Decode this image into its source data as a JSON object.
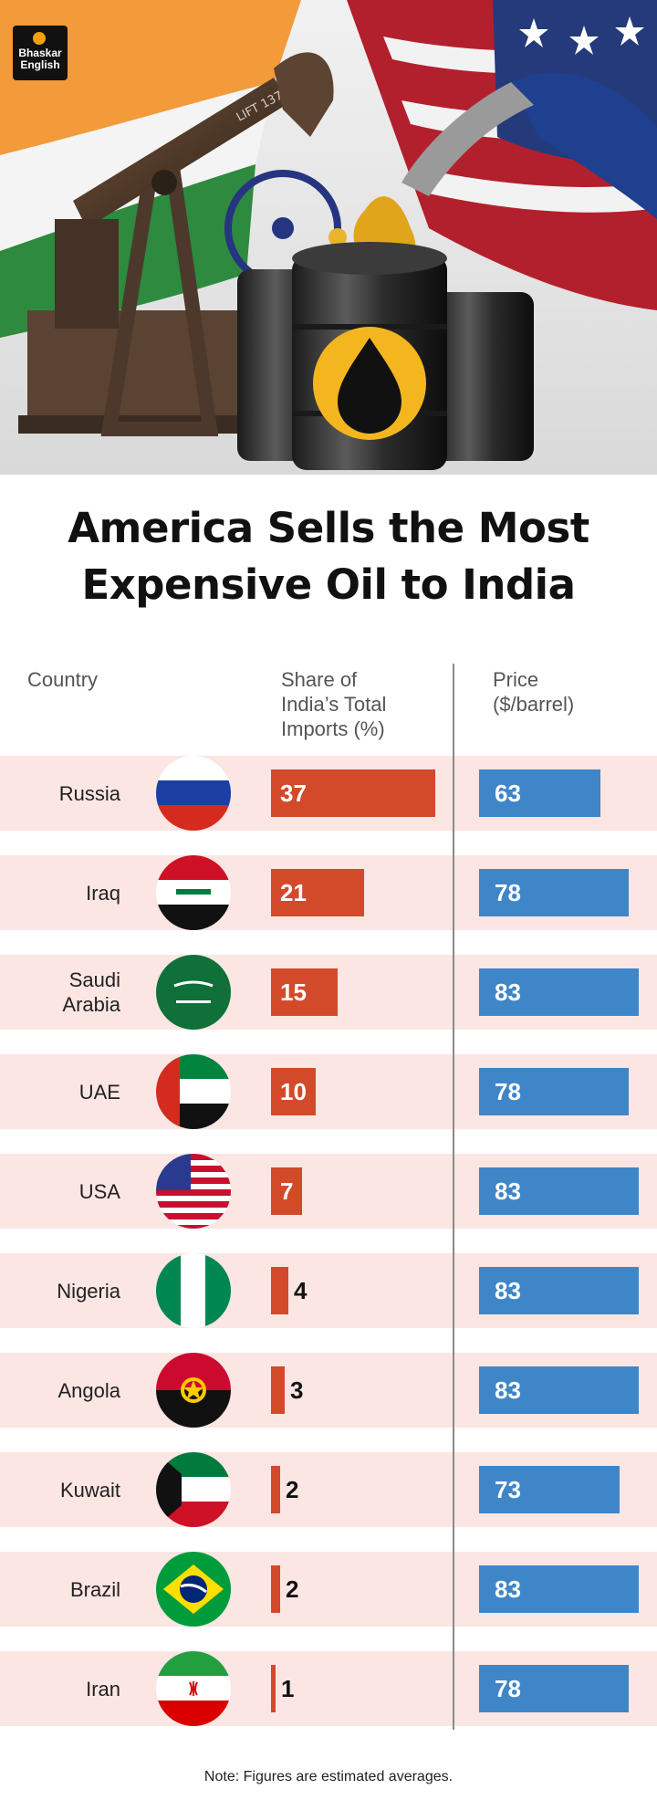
{
  "brand": {
    "line1": "Bhaskar",
    "line2": "English"
  },
  "title": {
    "line1": "America Sells the Most",
    "line2": "Expensive Oil to India"
  },
  "headers": {
    "country": "Country",
    "share": [
      "Share of",
      "India’s Total",
      "Imports (%)"
    ],
    "price": [
      "Price",
      "($/barrel)"
    ]
  },
  "note": "Note: Figures are estimated averages.",
  "colors": {
    "share_bar": "#d24a2a",
    "price_bar": "#3f86c8",
    "row_band": "#fbe6e3"
  },
  "hero_sign": "LIFT 137",
  "chart_data": {
    "type": "bar",
    "categories": [
      "Russia",
      "Iraq",
      "Saudi Arabia",
      "UAE",
      "USA",
      "Nigeria",
      "Angola",
      "Kuwait",
      "Brazil",
      "Iran"
    ],
    "country_labels": [
      [
        "Russia"
      ],
      [
        "Iraq"
      ],
      [
        "Saudi",
        "Arabia"
      ],
      [
        "UAE"
      ],
      [
        "USA"
      ],
      [
        "Nigeria"
      ],
      [
        "Angola"
      ],
      [
        "Kuwait"
      ],
      [
        "Brazil"
      ],
      [
        "Iran"
      ]
    ],
    "flags": [
      "russia-flag",
      "iraq-flag",
      "saudi-arabia-flag",
      "uae-flag",
      "usa-flag",
      "nigeria-flag",
      "angola-flag",
      "kuwait-flag",
      "brazil-flag",
      "iran-flag"
    ],
    "series": [
      {
        "name": "Share of India’s Total Imports (%)",
        "values": [
          37,
          21,
          15,
          10,
          7,
          4,
          3,
          2,
          2,
          1
        ]
      },
      {
        "name": "Price ($/barrel)",
        "values": [
          63,
          78,
          83,
          78,
          83,
          83,
          83,
          73,
          83,
          78
        ]
      }
    ],
    "title": "America Sells the Most Expensive Oil to India",
    "legend": "none"
  }
}
